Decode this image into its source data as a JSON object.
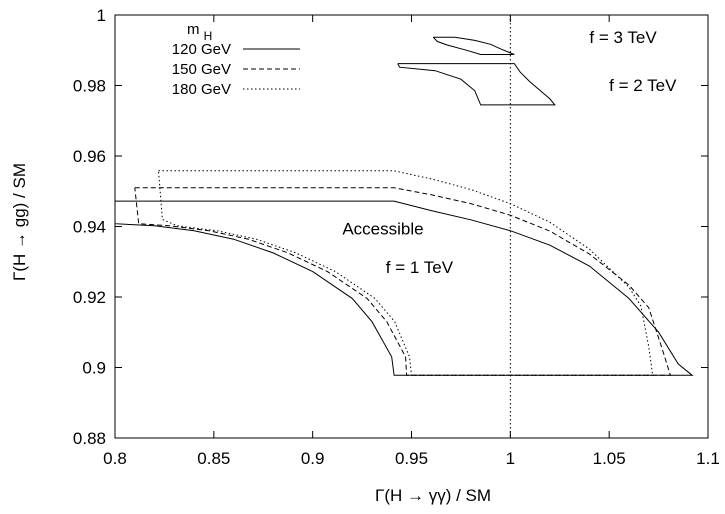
{
  "chart_data": {
    "type": "line",
    "xlabel": "Γ(H → γγ) / SM",
    "ylabel": "Γ(H → gg) / SM",
    "xlim": [
      0.8,
      1.1
    ],
    "ylim": [
      0.88,
      1.0
    ],
    "xticks": [
      "0.8",
      "0.85",
      "0.9",
      "0.95",
      "1",
      "1.05",
      "1.1"
    ],
    "yticks": [
      "0.88",
      "0.9",
      "0.92",
      "0.94",
      "0.96",
      "0.98",
      "1"
    ],
    "grid": false,
    "legend_title": "m_H",
    "legend_title_main": "m",
    "legend_title_sub": "H",
    "legend_position": "top-left",
    "reference_line_x": 1.0,
    "series": [
      {
        "name": "120 GeV",
        "dash": "solid",
        "regions": [
          [
            [
              0.8,
              0.9472
            ],
            [
              0.9412,
              0.9472
            ],
            [
              0.96,
              0.9445
            ],
            [
              0.98,
              0.9419
            ],
            [
              1.0,
              0.9388
            ],
            [
              1.02,
              0.9347
            ],
            [
              1.04,
              0.9288
            ],
            [
              1.06,
              0.9196
            ],
            [
              1.075,
              0.91
            ],
            [
              1.085,
              0.901
            ],
            [
              1.092,
              0.8978
            ],
            [
              0.9412,
              0.8978
            ],
            [
              0.94,
              0.903
            ],
            [
              0.93,
              0.913
            ],
            [
              0.92,
              0.9196
            ],
            [
              0.9,
              0.9272
            ],
            [
              0.88,
              0.9325
            ],
            [
              0.86,
              0.9364
            ],
            [
              0.84,
              0.9388
            ],
            [
              0.82,
              0.9402
            ],
            [
              0.8,
              0.9408
            ],
            [
              0.8,
              0.9472
            ]
          ],
          [
            [
              0.943,
              0.9862
            ],
            [
              1.002,
              0.9862
            ],
            [
              1.005,
              0.9838
            ],
            [
              1.01,
              0.981
            ],
            [
              1.015,
              0.9786
            ],
            [
              1.02,
              0.9762
            ],
            [
              1.0225,
              0.9745
            ],
            [
              0.985,
              0.9745
            ],
            [
              0.982,
              0.9785
            ],
            [
              0.975,
              0.9818
            ],
            [
              0.962,
              0.9842
            ],
            [
              0.944,
              0.9852
            ],
            [
              0.943,
              0.9862
            ]
          ],
          [
            [
              0.961,
              0.9937
            ],
            [
              0.972,
              0.9937
            ],
            [
              0.982,
              0.9928
            ],
            [
              0.99,
              0.9917
            ],
            [
              0.995,
              0.9904
            ],
            [
              1.002,
              0.9888
            ],
            [
              0.985,
              0.9888
            ],
            [
              0.978,
              0.99
            ],
            [
              0.968,
              0.9915
            ],
            [
              0.963,
              0.9925
            ],
            [
              0.961,
              0.9937
            ]
          ]
        ]
      },
      {
        "name": "150 GeV",
        "dash": "dashed",
        "regions": [
          [
            [
              0.81,
              0.951
            ],
            [
              0.9412,
              0.951
            ],
            [
              0.96,
              0.949
            ],
            [
              0.98,
              0.9465
            ],
            [
              1.0,
              0.9432
            ],
            [
              1.02,
              0.9387
            ],
            [
              1.04,
              0.9322
            ],
            [
              1.06,
              0.9234
            ],
            [
              1.07,
              0.917
            ],
            [
              1.077,
              0.905
            ],
            [
              1.081,
              0.8978
            ],
            [
              0.9475,
              0.8978
            ],
            [
              0.947,
              0.903
            ],
            [
              0.9375,
              0.913
            ],
            [
              0.9275,
              0.9196
            ],
            [
              0.9075,
              0.9272
            ],
            [
              0.8875,
              0.9325
            ],
            [
              0.8675,
              0.9364
            ],
            [
              0.8475,
              0.9388
            ],
            [
              0.8275,
              0.9402
            ],
            [
              0.812,
              0.9408
            ],
            [
              0.81,
              0.951
            ]
          ]
        ]
      },
      {
        "name": "180 GeV",
        "dash": "dotted",
        "regions": [
          [
            [
              0.822,
              0.9558
            ],
            [
              0.9412,
              0.9558
            ],
            [
              0.96,
              0.9535
            ],
            [
              0.98,
              0.9505
            ],
            [
              1.0,
              0.9465
            ],
            [
              1.02,
              0.9412
            ],
            [
              1.04,
              0.9336
            ],
            [
              1.06,
              0.9228
            ],
            [
              1.066,
              0.9175
            ],
            [
              1.07,
              0.906
            ],
            [
              1.072,
              0.8978
            ],
            [
              0.95,
              0.8978
            ],
            [
              0.949,
              0.903
            ],
            [
              0.9415,
              0.913
            ],
            [
              0.9315,
              0.9196
            ],
            [
              0.9115,
              0.9272
            ],
            [
              0.8915,
              0.9325
            ],
            [
              0.8715,
              0.9364
            ],
            [
              0.8515,
              0.9388
            ],
            [
              0.8315,
              0.9402
            ],
            [
              0.824,
              0.942
            ],
            [
              0.822,
              0.9558
            ]
          ]
        ]
      }
    ],
    "annotations": [
      {
        "text": "Accessible",
        "x": 0.915,
        "y": 0.9378
      },
      {
        "text": "f = 1 TeV",
        "x": 0.937,
        "y": 0.9268
      },
      {
        "text": "f = 2 TeV",
        "x": 1.05,
        "y": 0.9785
      },
      {
        "text": "f = 3 TeV",
        "x": 1.04,
        "y": 0.992
      }
    ]
  }
}
